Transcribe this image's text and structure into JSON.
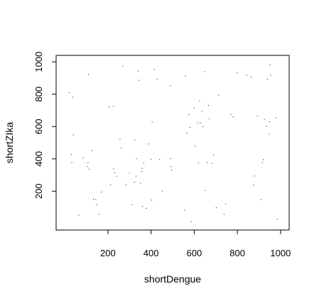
{
  "chart_data": {
    "type": "scatter",
    "title": "",
    "xlabel": "shortDengue",
    "ylabel": "shortZIka",
    "xlim": [
      0,
      1000
    ],
    "ylim": [
      0,
      1000
    ],
    "xticks": [
      200,
      400,
      600,
      800,
      1000
    ],
    "yticks": [
      200,
      400,
      600,
      800,
      1000
    ],
    "grid": false,
    "points": [
      [
        22,
        809
      ],
      [
        38,
        781
      ],
      [
        40,
        548
      ],
      [
        30,
        427
      ],
      [
        33,
        377
      ],
      [
        85,
        405
      ],
      [
        65,
        52
      ],
      [
        110,
        922
      ],
      [
        105,
        352
      ],
      [
        112,
        336
      ],
      [
        126,
        452
      ],
      [
        108,
        377
      ],
      [
        133,
        151
      ],
      [
        143,
        148
      ],
      [
        148,
        117
      ],
      [
        160,
        57
      ],
      [
        170,
        195
      ],
      [
        205,
        721
      ],
      [
        226,
        724
      ],
      [
        212,
        240
      ],
      [
        226,
        338
      ],
      [
        231,
        313
      ],
      [
        240,
        292
      ],
      [
        256,
        522
      ],
      [
        262,
        468
      ],
      [
        269,
        974
      ],
      [
        285,
        241
      ],
      [
        300,
        311
      ],
      [
        312,
        117
      ],
      [
        324,
        257
      ],
      [
        324,
        518
      ],
      [
        332,
        401
      ],
      [
        330,
        293
      ],
      [
        340,
        943
      ],
      [
        344,
        886
      ],
      [
        350,
        251
      ],
      [
        356,
        321
      ],
      [
        358,
        342
      ],
      [
        360,
        106
      ],
      [
        366,
        373
      ],
      [
        378,
        94
      ],
      [
        390,
        492
      ],
      [
        400,
        398
      ],
      [
        403,
        145
      ],
      [
        405,
        628
      ],
      [
        415,
        953
      ],
      [
        428,
        893
      ],
      [
        440,
        396
      ],
      [
        452,
        201
      ],
      [
        490,
        853
      ],
      [
        490,
        401
      ],
      [
        492,
        352
      ],
      [
        495,
        332
      ],
      [
        555,
        83
      ],
      [
        560,
        912
      ],
      [
        566,
        560
      ],
      [
        575,
        673
      ],
      [
        580,
        594
      ],
      [
        586,
        12
      ],
      [
        600,
        714
      ],
      [
        605,
        480
      ],
      [
        616,
        623
      ],
      [
        620,
        374
      ],
      [
        625,
        759
      ],
      [
        628,
        622
      ],
      [
        635,
        693
      ],
      [
        640,
        599
      ],
      [
        648,
        940
      ],
      [
        650,
        205
      ],
      [
        660,
        377
      ],
      [
        666,
        731
      ],
      [
        670,
        649
      ],
      [
        682,
        372
      ],
      [
        690,
        424
      ],
      [
        702,
        98
      ],
      [
        713,
        794
      ],
      [
        738,
        58
      ],
      [
        746,
        123
      ],
      [
        770,
        673
      ],
      [
        780,
        660
      ],
      [
        800,
        932
      ],
      [
        843,
        917
      ],
      [
        864,
        905
      ],
      [
        875,
        238
      ],
      [
        880,
        294
      ],
      [
        893,
        665
      ],
      [
        915,
        376
      ],
      [
        920,
        395
      ],
      [
        925,
        644
      ],
      [
        935,
        601
      ],
      [
        940,
        893
      ],
      [
        947,
        553
      ],
      [
        950,
        630
      ],
      [
        952,
        983
      ],
      [
        955,
        917
      ],
      [
        980,
        655
      ],
      [
        985,
        27
      ],
      [
        909,
        148
      ]
    ]
  }
}
